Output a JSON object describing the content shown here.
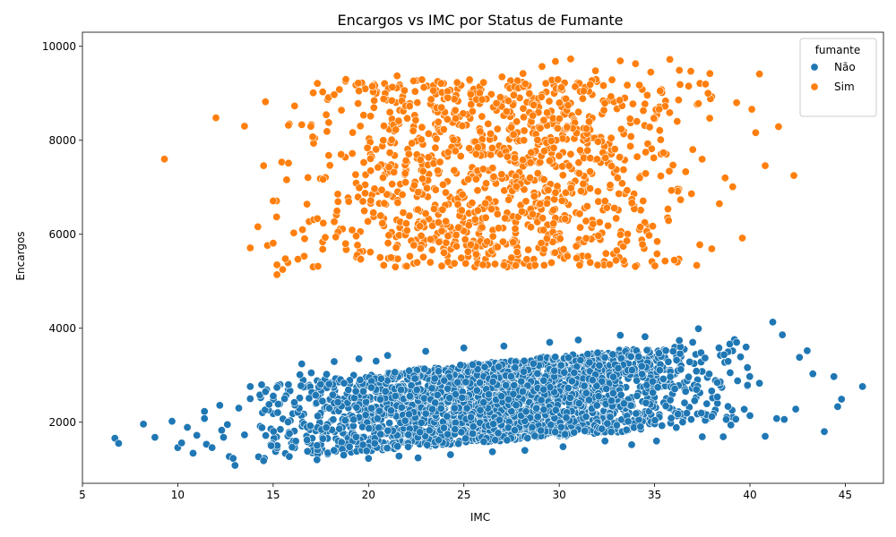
{
  "chart_data": {
    "type": "scatter",
    "title": "Encargos vs IMC por Status de Fumante",
    "xlabel": "IMC",
    "ylabel": "Encargos",
    "xlim": [
      5,
      47
    ],
    "ylim": [
      700,
      10300
    ],
    "xticks": [
      5,
      10,
      15,
      20,
      25,
      30,
      35,
      40,
      45
    ],
    "yticks": [
      2000,
      4000,
      6000,
      8000,
      10000
    ],
    "grid": false,
    "legend": {
      "title": "fumante",
      "position": "top-right",
      "entries": [
        {
          "label": "Não",
          "color": "#1f77b4"
        },
        {
          "label": "Sim",
          "color": "#ff7f0e"
        }
      ]
    },
    "series": [
      {
        "name": "Não",
        "color": "#1f77b4",
        "points": [
          [
            6.7,
            1660
          ],
          [
            6.9,
            1550
          ],
          [
            8.2,
            1960
          ],
          [
            8.8,
            1680
          ],
          [
            9.7,
            2020
          ],
          [
            10.0,
            1460
          ],
          [
            10.2,
            1560
          ],
          [
            10.5,
            1890
          ],
          [
            10.8,
            1340
          ],
          [
            11.0,
            1720
          ],
          [
            11.4,
            2230
          ],
          [
            11.4,
            2080
          ],
          [
            11.5,
            1530
          ],
          [
            11.8,
            1460
          ],
          [
            12.2,
            2360
          ],
          [
            12.3,
            1830
          ],
          [
            12.4,
            1680
          ],
          [
            12.6,
            1950
          ],
          [
            12.7,
            1270
          ],
          [
            12.9,
            1230
          ],
          [
            13.0,
            1080
          ],
          [
            13.2,
            2300
          ],
          [
            13.5,
            1730
          ],
          [
            13.8,
            2760
          ],
          [
            13.8,
            2500
          ],
          [
            14.3,
            2580
          ],
          [
            14.5,
            1180
          ],
          [
            14.6,
            2650
          ],
          [
            14.9,
            1500
          ],
          [
            15.2,
            2740
          ],
          [
            15.6,
            2500
          ],
          [
            15.8,
            2800
          ],
          [
            16.0,
            1470
          ],
          [
            16.4,
            3010
          ],
          [
            16.5,
            3240
          ],
          [
            16.8,
            1380
          ],
          [
            17.0,
            3050
          ],
          [
            17.3,
            1200
          ],
          [
            17.8,
            3020
          ],
          [
            18.2,
            3290
          ],
          [
            18.7,
            1300
          ],
          [
            19.5,
            3350
          ],
          [
            20.0,
            1230
          ],
          [
            20.4,
            3300
          ],
          [
            21.0,
            3420
          ],
          [
            21.6,
            1280
          ],
          [
            22.6,
            1240
          ],
          [
            23.0,
            3510
          ],
          [
            24.3,
            1310
          ],
          [
            25.0,
            3580
          ],
          [
            26.5,
            1370
          ],
          [
            27.1,
            3620
          ],
          [
            28.2,
            1400
          ],
          [
            29.5,
            3700
          ],
          [
            30.2,
            1480
          ],
          [
            31.0,
            3750
          ],
          [
            32.4,
            1600
          ],
          [
            33.2,
            3850
          ],
          [
            33.8,
            1520
          ],
          [
            34.5,
            3820
          ],
          [
            35.1,
            1600
          ],
          [
            36.3,
            3740
          ],
          [
            37.0,
            3700
          ],
          [
            37.3,
            3990
          ],
          [
            37.5,
            1690
          ],
          [
            38.0,
            2120
          ],
          [
            38.6,
            1690
          ],
          [
            39.0,
            1940
          ],
          [
            39.3,
            3700
          ],
          [
            39.8,
            3600
          ],
          [
            40.0,
            2140
          ],
          [
            40.5,
            2830
          ],
          [
            40.8,
            1700
          ],
          [
            41.2,
            4130
          ],
          [
            41.4,
            2080
          ],
          [
            41.7,
            3860
          ],
          [
            41.8,
            2060
          ],
          [
            42.4,
            2280
          ],
          [
            42.6,
            3380
          ],
          [
            43.0,
            3520
          ],
          [
            43.3,
            3030
          ],
          [
            43.9,
            1800
          ],
          [
            44.4,
            2970
          ],
          [
            44.6,
            2330
          ],
          [
            44.8,
            2490
          ],
          [
            45.9,
            2760
          ]
        ],
        "bulk": {
          "x_range": [
            14,
            40
          ],
          "y_min_at_x14": 1200,
          "y_max_at_x14": 2800,
          "y_min_at_x40": 2000,
          "y_max_at_x40": 3800
        }
      },
      {
        "name": "Sim",
        "color": "#ff7f0e",
        "points": [
          [
            9.3,
            7600
          ],
          [
            12.0,
            8480
          ],
          [
            13.5,
            8300
          ],
          [
            13.8,
            5710
          ],
          [
            14.2,
            6160
          ],
          [
            14.5,
            7460
          ],
          [
            14.6,
            8820
          ],
          [
            14.7,
            5760
          ],
          [
            15.0,
            5810
          ],
          [
            15.0,
            6710
          ],
          [
            15.2,
            5140
          ],
          [
            15.2,
            5350
          ],
          [
            15.5,
            5250
          ],
          [
            15.8,
            8320
          ],
          [
            16.3,
            5470
          ],
          [
            16.5,
            8330
          ],
          [
            17.1,
            9010
          ],
          [
            17.6,
            5680
          ],
          [
            17.9,
            8910
          ],
          [
            18.2,
            8970
          ],
          [
            18.8,
            5800
          ],
          [
            19.5,
            9050
          ],
          [
            20.2,
            9150
          ],
          [
            20.8,
            5340
          ],
          [
            21.5,
            9370
          ],
          [
            22.0,
            5320
          ],
          [
            22.8,
            9290
          ],
          [
            23.8,
            9210
          ],
          [
            24.5,
            5380
          ],
          [
            25.3,
            9290
          ],
          [
            26.0,
            5350
          ],
          [
            27.0,
            9350
          ],
          [
            27.5,
            5500
          ],
          [
            28.1,
            9420
          ],
          [
            29.1,
            9570
          ],
          [
            29.8,
            9680
          ],
          [
            30.6,
            9730
          ],
          [
            31.9,
            9480
          ],
          [
            33.2,
            9690
          ],
          [
            34.0,
            9630
          ],
          [
            34.8,
            9450
          ],
          [
            35.8,
            9720
          ],
          [
            36.3,
            9490
          ],
          [
            36.9,
            9470
          ],
          [
            37.9,
            9420
          ],
          [
            37.3,
            8780
          ],
          [
            37.8,
            9000
          ],
          [
            38.0,
            5690
          ],
          [
            38.4,
            6650
          ],
          [
            38.7,
            7200
          ],
          [
            39.1,
            7010
          ],
          [
            39.3,
            8800
          ],
          [
            39.6,
            5920
          ],
          [
            40.1,
            8660
          ],
          [
            40.3,
            8160
          ],
          [
            40.5,
            9410
          ],
          [
            40.8,
            7460
          ],
          [
            41.5,
            8290
          ],
          [
            42.3,
            7250
          ]
        ],
        "bulk": {
          "x_range": [
            15,
            38
          ],
          "y_range": [
            5300,
            9300
          ]
        }
      }
    ]
  }
}
